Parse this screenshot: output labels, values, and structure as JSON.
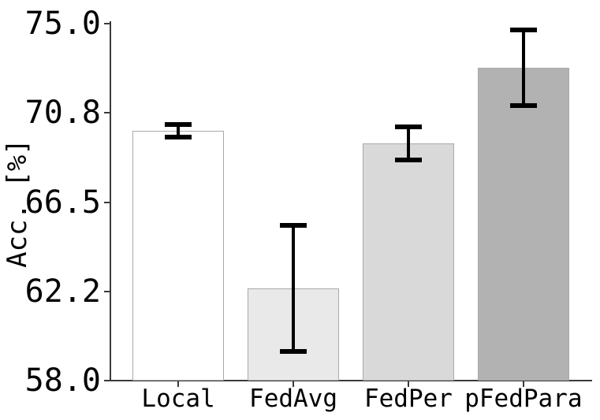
{
  "chart_data": {
    "type": "bar",
    "categories": [
      "Local",
      "FedAvg",
      "FedPer",
      "pFedPara"
    ],
    "values": [
      69.9,
      62.4,
      69.3,
      72.9
    ],
    "error_bars": [
      0.3,
      3.0,
      0.8,
      1.8
    ],
    "title": "",
    "xlabel": "",
    "ylabel": "Acc. [%]",
    "ytick_labels": [
      "58.0",
      "62.2",
      "66.5",
      "70.8",
      "75.0"
    ],
    "ytick_values": [
      58.0,
      62.25,
      66.5,
      70.75,
      75.0
    ],
    "ylim": [
      58.0,
      75.0
    ],
    "grid": false,
    "legend_position": "none",
    "bar_colors": [
      "#ffffff",
      "#e9e9e9",
      "#d9d9d9",
      "#b2b2b2"
    ],
    "bar_edge_color": "#a9a9a9",
    "error_bar_color": "#000000",
    "axis_color": "#3a3a3a",
    "text_color": "#000000",
    "background_color": "#ffffff"
  }
}
